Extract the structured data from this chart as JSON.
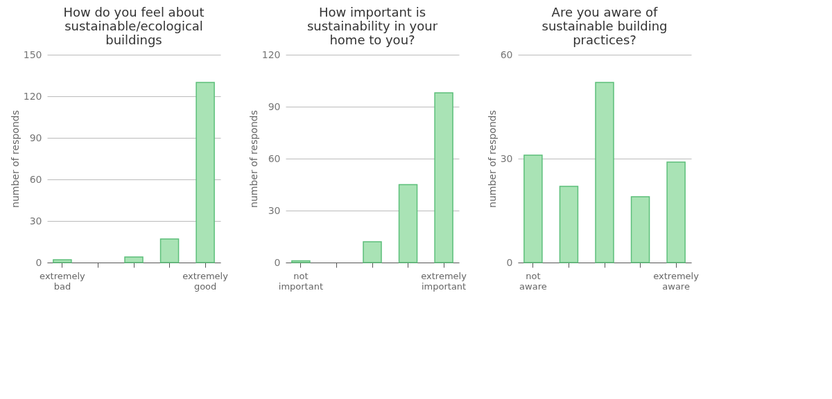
{
  "chart_data": [
    {
      "type": "bar",
      "title": "How do you feel about sustainable/ecological buildings",
      "ylabel": "number of responds",
      "categories": [
        "extremely bad",
        null,
        null,
        null,
        "extremely good"
      ],
      "values": [
        2,
        0,
        4,
        17,
        130
      ],
      "color": "#a9e3b5",
      "ylim": [
        0,
        150
      ],
      "yticks": [
        0,
        30,
        60,
        90,
        120,
        150
      ],
      "grid": "y"
    },
    {
      "type": "bar",
      "title": "How important is sustainability in your home to you?",
      "ylabel": "number of responds",
      "categories": [
        "not important",
        null,
        null,
        null,
        "extremely important"
      ],
      "values": [
        1,
        0,
        12,
        45,
        98
      ],
      "color": "#a9e3b5",
      "ylim": [
        0,
        120
      ],
      "yticks": [
        0,
        30,
        60,
        90,
        120
      ],
      "grid": "y"
    },
    {
      "type": "bar",
      "title": "Are you aware of sustainable building practices?",
      "ylabel": "number of responds",
      "categories": [
        "not aware",
        null,
        null,
        null,
        "extremely aware"
      ],
      "values": [
        31,
        22,
        52,
        19,
        29
      ],
      "color": "#a9e3b5",
      "ylim": [
        0,
        60
      ],
      "yticks": [
        0,
        30,
        60
      ],
      "grid": "y"
    }
  ]
}
